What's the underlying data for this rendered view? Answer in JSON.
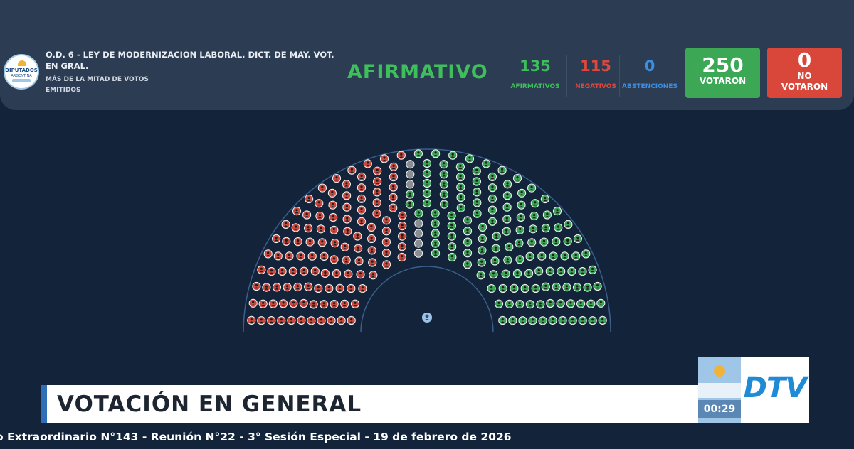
{
  "header": {
    "seal_text": "DIPUTADOS",
    "seal_subtext": "ARGENTINA",
    "bill_title": "O.D. 6 - LEY DE MODERNIZACIÓN LABORAL. DICT. DE MAY. VOT. EN GRAL.",
    "majority_rule": "MÁS DE LA MITAD DE VOTOS EMITIDOS",
    "result": "AFIRMATIVO",
    "tallies": [
      {
        "value": "135",
        "label": "AFIRMATIVOS",
        "color": "#3fbf5c"
      },
      {
        "value": "115",
        "label": "NEGATIVOS",
        "color": "#e2473b"
      },
      {
        "value": "0",
        "label": "ABSTENCIONES",
        "color": "#3d8ee0"
      }
    ],
    "votaron": {
      "value": "250",
      "label": "VOTARON",
      "color": "#3ca856"
    },
    "no_votaron": {
      "value": "0",
      "label1": "NO",
      "label2": "VOTARON",
      "color": "#d8473a"
    }
  },
  "hemicycle": {
    "seats_total": 257,
    "afirmativos": 135,
    "negativos": 115,
    "ausentes": 7,
    "colors": {
      "afirmativo": "#3ea558",
      "negativo": "#c94a3f",
      "ausente": "#8a8d92",
      "presidency": "#9cc3e6"
    }
  },
  "lower_third": {
    "title": "VOTACIÓN EN GENERAL",
    "clock": "00:29",
    "logo": "DTV"
  },
  "ticker": "o Extraordinario N°143 - Reunión N°22 - 3° Sesión Especial - 19 de febrero de 2026"
}
